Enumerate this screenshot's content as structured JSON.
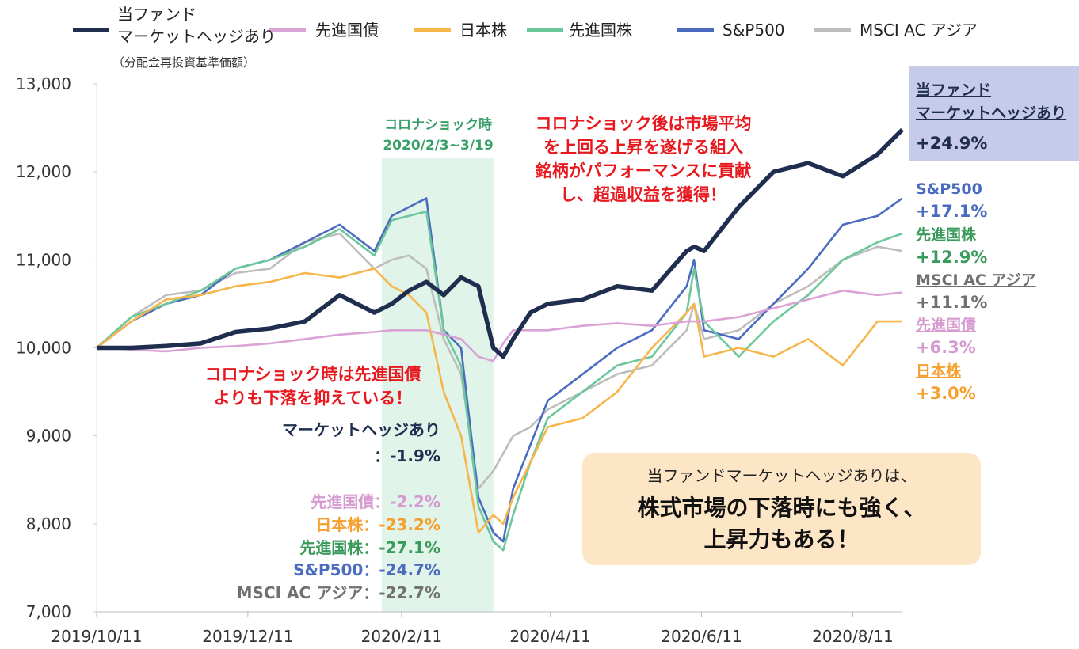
{
  "chart_data": {
    "type": "line",
    "legend_note": "（分配金再投資基準価額）",
    "x": [
      "2019/10/11",
      "2019/10/25",
      "2019/11/8",
      "2019/11/22",
      "2019/12/6",
      "2019/12/20",
      "2020/1/3",
      "2020/1/17",
      "2020/1/31",
      "2020/2/7",
      "2020/2/14",
      "2020/2/21",
      "2020/2/28",
      "2020/3/6",
      "2020/3/13",
      "2020/3/19",
      "2020/3/23",
      "2020/3/27",
      "2020/4/3",
      "2020/4/10",
      "2020/4/24",
      "2020/5/8",
      "2020/5/22",
      "2020/6/5",
      "2020/6/8",
      "2020/6/12",
      "2020/6/26",
      "2020/7/10",
      "2020/7/24",
      "2020/8/7",
      "2020/8/21",
      "2020/8/31"
    ],
    "xlim": [
      "2019/10/11",
      "2020/8/31"
    ],
    "xticks": [
      "2019/10/11",
      "2019/12/11",
      "2020/2/11",
      "2020/4/11",
      "2020/6/11",
      "2020/8/11"
    ],
    "ylim": [
      7000,
      13000
    ],
    "yticks": [
      {
        "value": 7000,
        "label": "7,000"
      },
      {
        "value": 8000,
        "label": "8,000"
      },
      {
        "value": 9000,
        "label": "9,000"
      },
      {
        "value": 10000,
        "label": "10,000"
      },
      {
        "value": 11000,
        "label": "11,000"
      },
      {
        "value": 12000,
        "label": "12,000"
      },
      {
        "value": 13000,
        "label": "13,000"
      }
    ],
    "grid": false,
    "highlight": [
      "2020/2/3",
      "2020/3/19"
    ],
    "series": [
      {
        "name": "当ファンド\nマーケットヘッジあり",
        "color": "#1f2d4f",
        "values": [
          10000,
          10000,
          10020,
          10050,
          10180,
          10220,
          10300,
          10600,
          10400,
          10500,
          10650,
          10750,
          10600,
          10800,
          10700,
          10000,
          9900,
          10100,
          10400,
          10500,
          10550,
          10700,
          10650,
          11100,
          11150,
          11100,
          11600,
          12000,
          12100,
          11950,
          12200,
          12480
        ]
      },
      {
        "name": "先進国債",
        "color": "#dba2d6",
        "values": [
          10000,
          9980,
          9960,
          10000,
          10020,
          10050,
          10100,
          10150,
          10180,
          10200,
          10200,
          10200,
          10150,
          10100,
          9900,
          9850,
          10050,
          10200,
          10200,
          10200,
          10250,
          10280,
          10250,
          10300,
          10300,
          10300,
          10350,
          10450,
          10550,
          10650,
          10600,
          10630
        ]
      },
      {
        "name": "日本株",
        "color": "#f6b64c",
        "values": [
          10000,
          10300,
          10550,
          10600,
          10700,
          10750,
          10850,
          10800,
          10900,
          10700,
          10600,
          10400,
          9500,
          9000,
          7900,
          8100,
          8000,
          8300,
          8700,
          9100,
          9200,
          9500,
          10000,
          10400,
          10500,
          9900,
          10000,
          9900,
          10100,
          9800,
          10300,
          10300
        ]
      },
      {
        "name": "先進国株",
        "color": "#6cc79a",
        "values": [
          10000,
          10350,
          10500,
          10650,
          10900,
          11000,
          11150,
          11350,
          11050,
          11450,
          11500,
          11550,
          10200,
          9800,
          8200,
          7800,
          7700,
          8100,
          8700,
          9200,
          9500,
          9800,
          9900,
          10400,
          10900,
          10300,
          9900,
          10300,
          10600,
          11000,
          11200,
          11300
        ]
      },
      {
        "name": "S&P500",
        "color": "#4a6bbf",
        "values": [
          10000,
          10300,
          10500,
          10600,
          10900,
          11000,
          11200,
          11400,
          11100,
          11500,
          11600,
          11700,
          10200,
          10000,
          8300,
          7900,
          7800,
          8400,
          8900,
          9400,
          9700,
          10000,
          10200,
          10700,
          11000,
          10200,
          10100,
          10500,
          10900,
          11400,
          11500,
          11700
        ]
      },
      {
        "name": "MSCI AC アジア",
        "color": "#bdbdbd",
        "values": [
          10000,
          10350,
          10600,
          10650,
          10850,
          10900,
          11200,
          11300,
          10900,
          11000,
          11050,
          10900,
          10100,
          9700,
          8400,
          8600,
          8800,
          9000,
          9100,
          9300,
          9500,
          9700,
          9800,
          10200,
          10500,
          10100,
          10200,
          10500,
          10700,
          11000,
          11150,
          11100
        ]
      }
    ],
    "annotations": [
      {
        "text": "コロナショック時\n2020/2/3~3/19",
        "color": "#3aa06a"
      },
      {
        "text": "コロナショック後は市場平均\nを上回る上昇を遂げる組入\n銘柄がパフォーマンスに貢献\nし、超過収益を獲得！",
        "color": "#e8191e"
      },
      {
        "text": "コロナショック時は先進国債\nよりも下落を抑えている！",
        "color": "#e8191e"
      },
      {
        "text": "マーケットヘッジあり",
        "color": "#1f2d4f"
      },
      {
        "text": "：-1.9%",
        "color": "#1f2d4f"
      },
      {
        "text": "先進国債：-2.2%",
        "color": "#d59ad0"
      },
      {
        "text": "日本株：-23.2%",
        "color": "#f5a030"
      },
      {
        "text": "先進国株：-27.1%",
        "color": "#3a9a5c"
      },
      {
        "text": "S&P500：-24.7%",
        "color": "#4a6bbf"
      },
      {
        "text": "MSCI AC アジア：-22.7%",
        "color": "#707070"
      }
    ],
    "end_labels": [
      {
        "name": "当ファンド\nマーケットヘッジあり",
        "value": "+24.9%",
        "color": "#1f2d4f"
      },
      {
        "name": "S&P500",
        "value": "+17.1%",
        "color": "#4a6bbf"
      },
      {
        "name": "先進国株",
        "value": "+12.9%",
        "color": "#3a9a5c"
      },
      {
        "name": "MSCI AC アジア",
        "value": "+11.1%",
        "color": "#707070"
      },
      {
        "name": "先進国債",
        "value": "+6.3%",
        "color": "#d59ad0"
      },
      {
        "name": "日本株",
        "value": "+3.0%",
        "color": "#f5a030"
      }
    ],
    "callout": {
      "text": "当ファンドマーケットヘッジありは、",
      "emphasis": "株式市場の下落時にも強く、\n上昇力もある！"
    }
  }
}
